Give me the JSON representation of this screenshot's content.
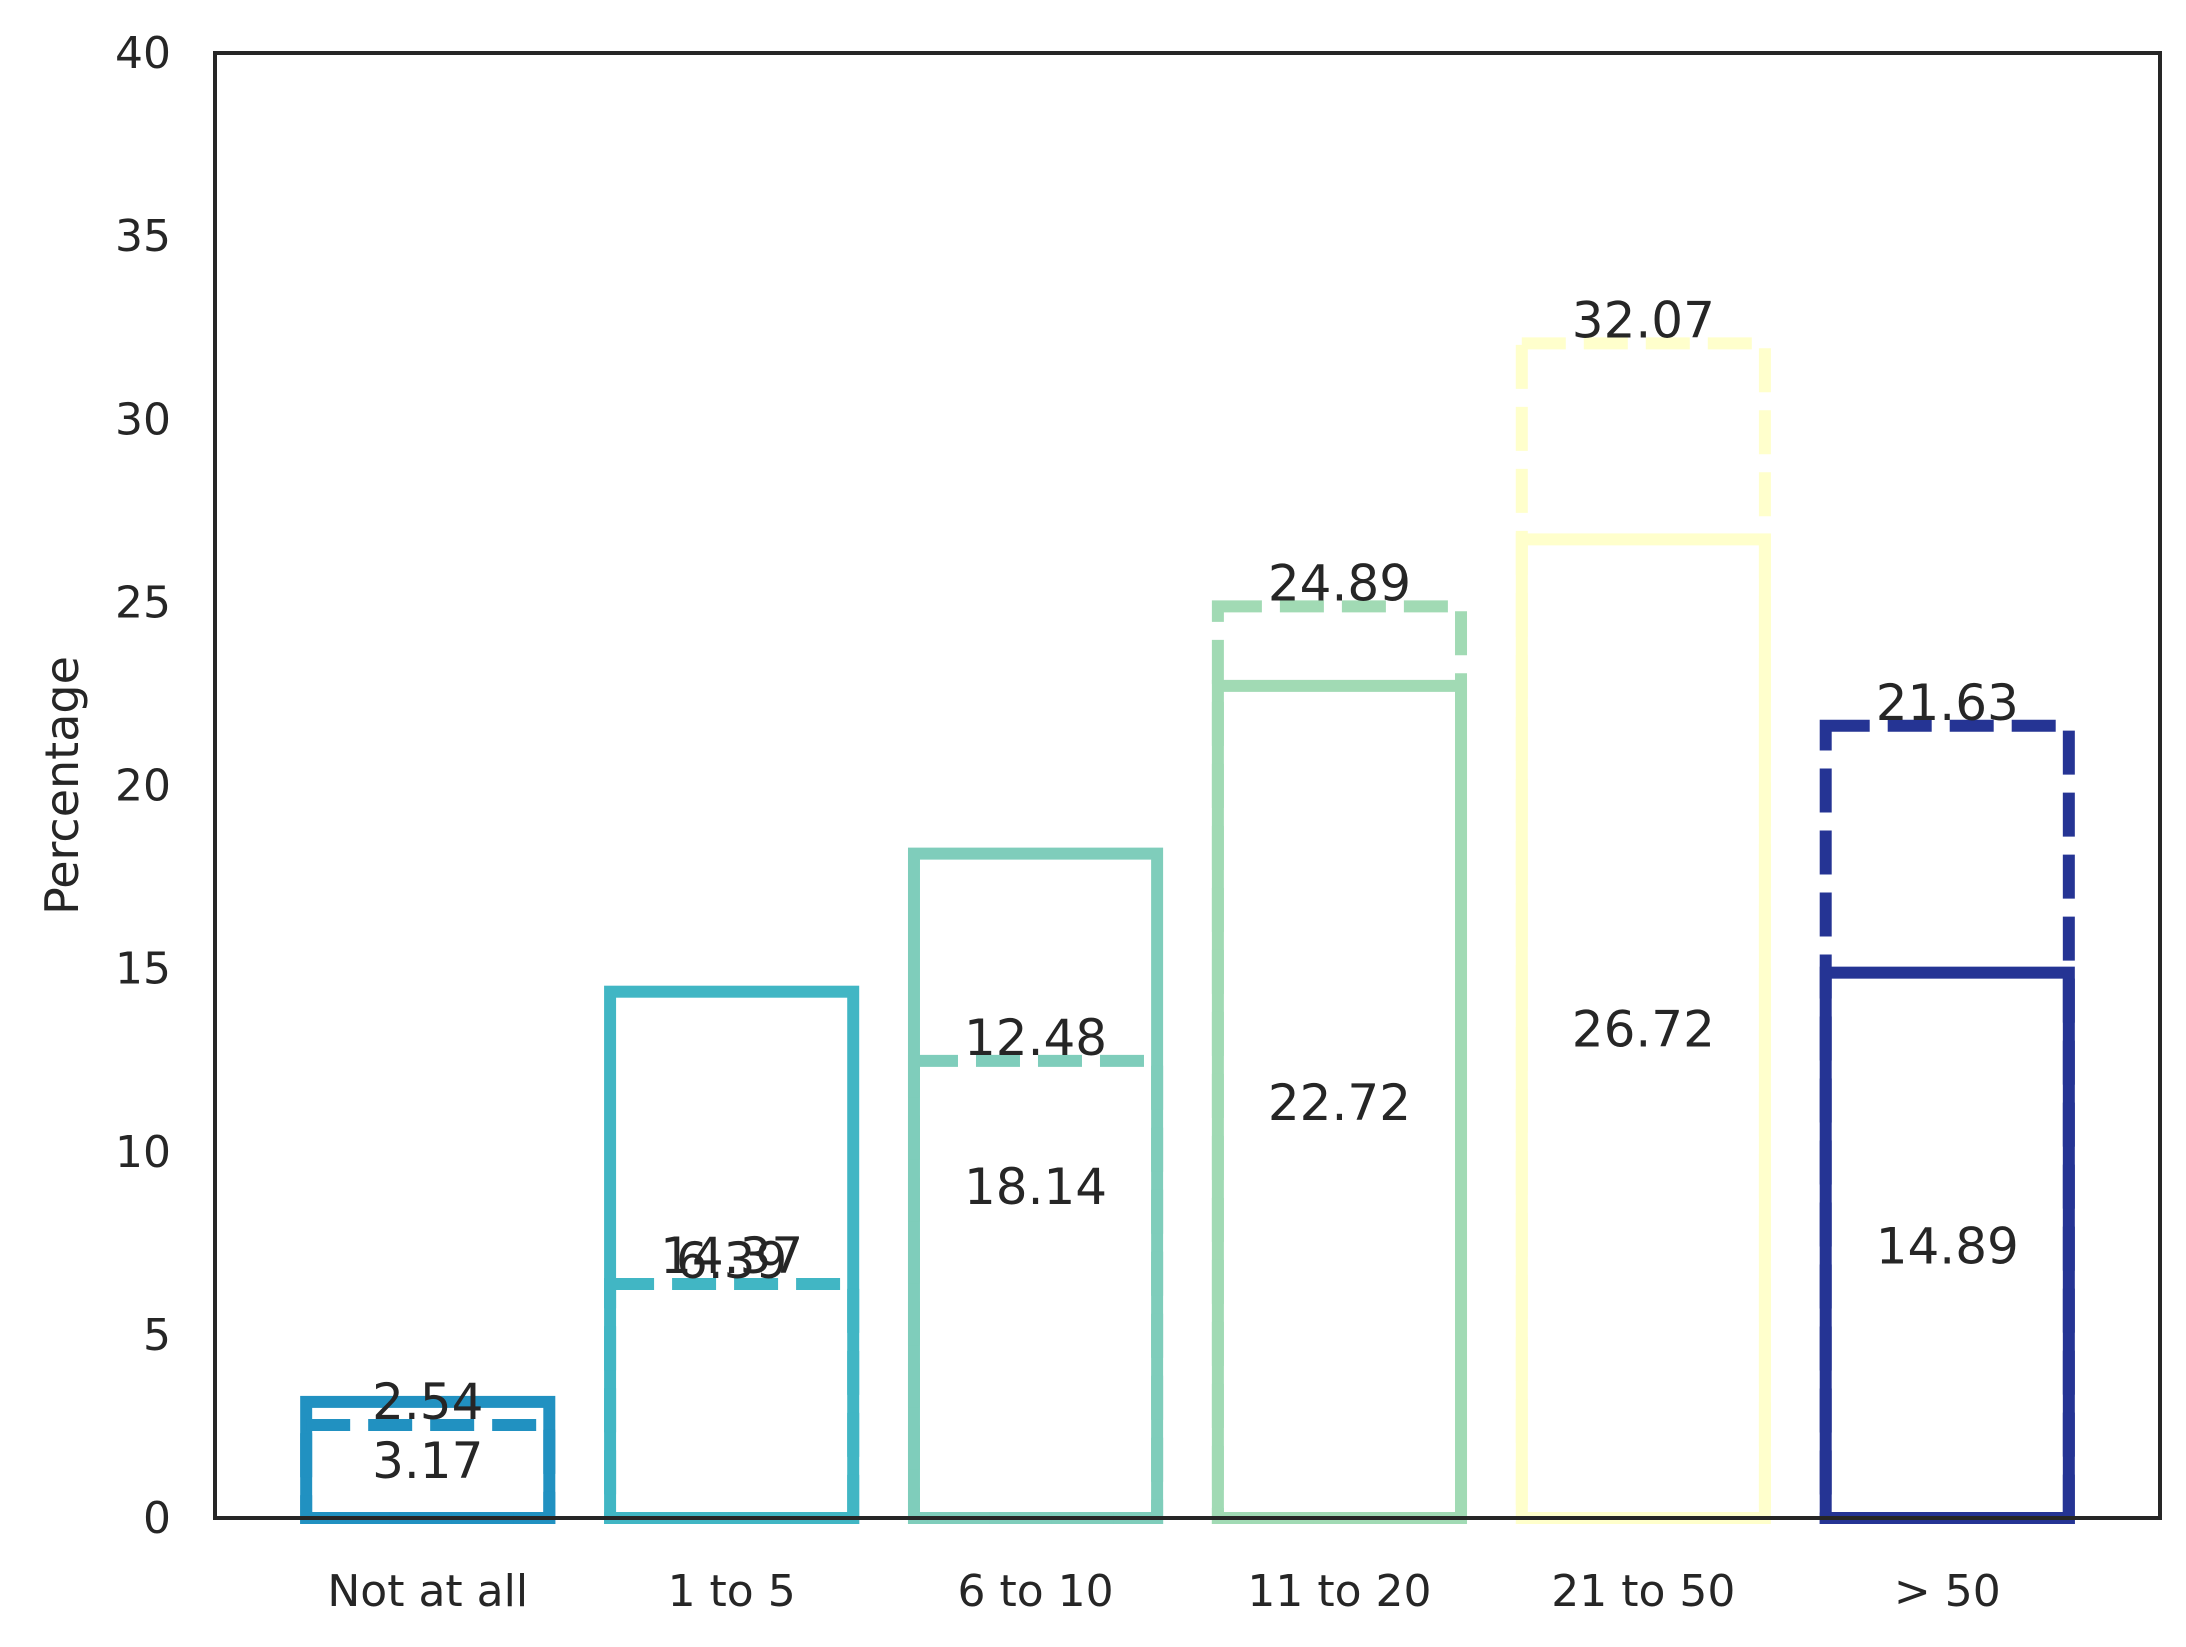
{
  "chart_data": {
    "type": "bar",
    "ylabel": "Percentage",
    "xlabel": "",
    "ylim": [
      0,
      40
    ],
    "yticks": [
      0,
      5,
      10,
      15,
      20,
      25,
      30,
      35,
      40
    ],
    "categories": [
      "Not at all",
      "1 to 5",
      "6 to 10",
      "11 to 20",
      "21 to 50",
      "> 50"
    ],
    "colors": [
      "#2191c1",
      "#41b6c4",
      "#7fcdbb",
      "#a1dab4",
      "#ffffcc",
      "#253494"
    ],
    "series": [
      {
        "style": "solid",
        "values": [
          3.17,
          14.37,
          18.14,
          22.72,
          26.72,
          14.89
        ]
      },
      {
        "style": "dashed",
        "values": [
          2.54,
          6.39,
          12.48,
          24.89,
          32.07,
          21.63
        ]
      }
    ],
    "grid": false,
    "legend": "none"
  }
}
